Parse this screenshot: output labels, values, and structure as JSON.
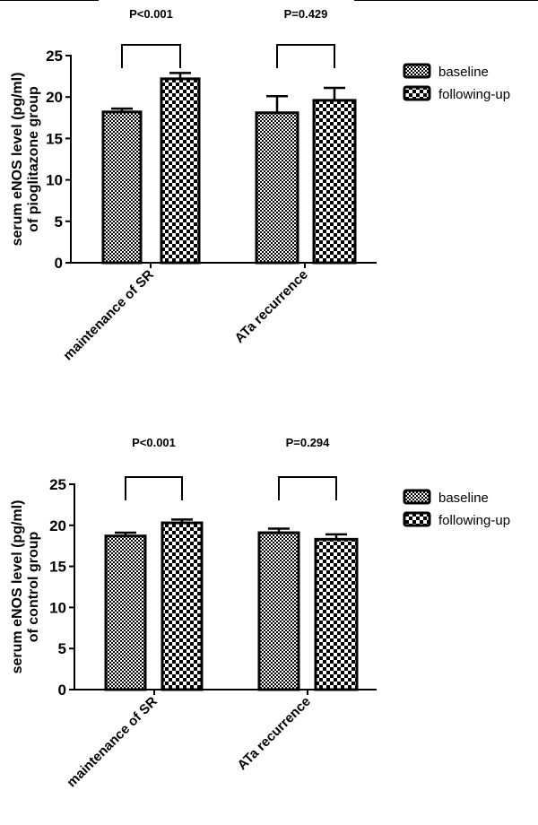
{
  "colors": {
    "bar_stroke": "#000000",
    "background": "#ffffff"
  },
  "chart_data": [
    {
      "type": "bar",
      "ylabel_lines": [
        "serum eNOS level (pg/ml)",
        "of pioglitazone group"
      ],
      "categories": [
        "maintenance of SR",
        "ATa recurrence"
      ],
      "ylim": [
        0,
        25
      ],
      "yticks": [
        0,
        5,
        10,
        15,
        20,
        25
      ],
      "legend": [
        "baseline",
        "following-up"
      ],
      "legend_position": "right",
      "grid": false,
      "series": [
        {
          "name": "baseline",
          "pattern": "fine-checker",
          "values": [
            18.2,
            18.1
          ],
          "error_upper": [
            18.6,
            20.1
          ]
        },
        {
          "name": "following-up",
          "pattern": "coarse-checker",
          "values": [
            22.2,
            19.6
          ],
          "error_upper": [
            22.9,
            21.1
          ]
        }
      ],
      "annotations": [
        "P<0.001",
        "P=0.429"
      ]
    },
    {
      "type": "bar",
      "ylabel_lines": [
        "serum eNOS level (pg/ml)",
        "of control group"
      ],
      "categories": [
        "maintenance of SR",
        "ATa recurrence"
      ],
      "ylim": [
        0,
        25
      ],
      "yticks": [
        0,
        5,
        10,
        15,
        20,
        25
      ],
      "legend": [
        "baseline",
        "following-up"
      ],
      "legend_position": "right",
      "grid": false,
      "series": [
        {
          "name": "baseline",
          "pattern": "fine-checker",
          "values": [
            18.7,
            19.1
          ],
          "error_upper": [
            19.1,
            19.6
          ]
        },
        {
          "name": "following-up",
          "pattern": "coarse-checker",
          "values": [
            20.3,
            18.3
          ],
          "error_upper": [
            20.7,
            18.9
          ]
        }
      ],
      "annotations": [
        "P<0.001",
        "P=0.294"
      ]
    }
  ]
}
